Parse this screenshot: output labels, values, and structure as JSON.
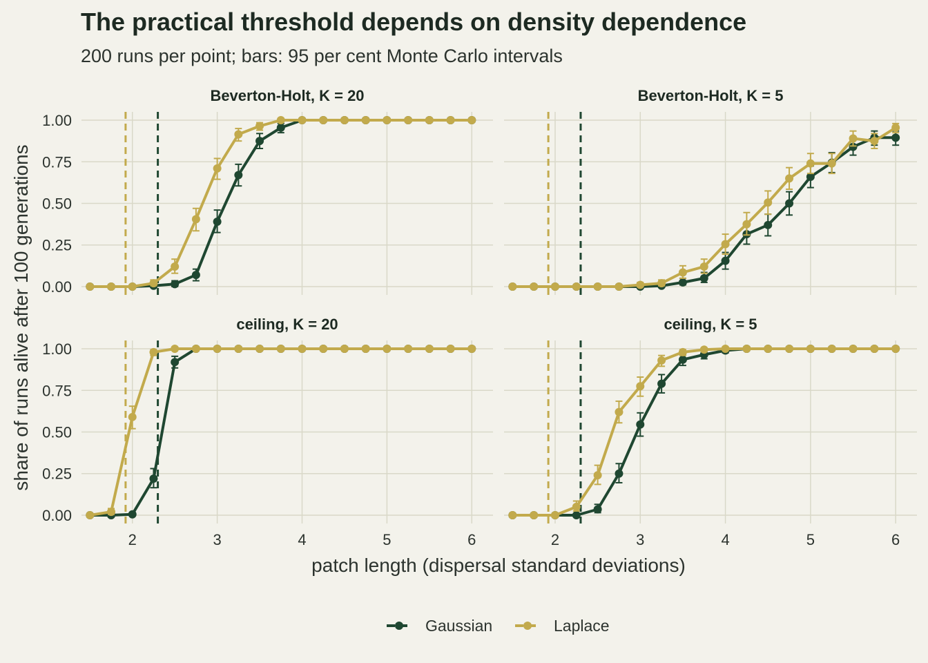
{
  "title": "The practical threshold depends on density dependence",
  "subtitle": "200 runs per point; bars: 95 per cent Monte Carlo intervals",
  "colors": {
    "background": "#f3f2eb",
    "grid": "#d9d8c8",
    "gaussian": "#1f4731",
    "laplace": "#c2aa4c"
  },
  "chart_data": {
    "type": "line",
    "xlabel": "patch length (dispersal standard deviations)",
    "ylabel": "share of runs alive after 100 generations",
    "xlim": [
      1.4,
      6.25
    ],
    "ylim": [
      -0.05,
      1.05
    ],
    "x_ticks": [
      2,
      3,
      4,
      5,
      6
    ],
    "x_tick_labels": [
      "2",
      "3",
      "4",
      "5",
      "6"
    ],
    "y_ticks": [
      0,
      0.25,
      0.5,
      0.75,
      1
    ],
    "y_tick_labels": [
      "0.00",
      "0.25",
      "0.50",
      "0.75",
      "1.00"
    ],
    "grid": true,
    "legend": {
      "position": "bottom",
      "entries": [
        "Gaussian",
        "Laplace"
      ]
    },
    "threshold_lines": {
      "Gaussian": 2.3,
      "Laplace": 1.92
    },
    "x": [
      1.5,
      1.75,
      2.0,
      2.25,
      2.5,
      2.75,
      3.0,
      3.25,
      3.5,
      3.75,
      4.0,
      4.25,
      4.5,
      4.75,
      5.0,
      5.25,
      5.5,
      5.75,
      6.0
    ],
    "panels": [
      {
        "label": "Beverton-Holt, K = 20",
        "series": [
          {
            "name": "Gaussian",
            "values": [
              0,
              0,
              0,
              0.005,
              0.015,
              0.07,
              0.39,
              0.67,
              0.875,
              0.955,
              1,
              1,
              1,
              1,
              1,
              1,
              1,
              1,
              1
            ],
            "lower": [
              0,
              0,
              0,
              0,
              0,
              0.035,
              0.325,
              0.605,
              0.83,
              0.925,
              1,
              1,
              1,
              1,
              1,
              1,
              1,
              1,
              1
            ],
            "upper": [
              0,
              0,
              0,
              0.015,
              0.035,
              0.105,
              0.46,
              0.735,
              0.92,
              0.98,
              1,
              1,
              1,
              1,
              1,
              1,
              1,
              1,
              1
            ]
          },
          {
            "name": "Laplace",
            "values": [
              0,
              0,
              0,
              0.02,
              0.12,
              0.405,
              0.71,
              0.915,
              0.965,
              1,
              1,
              1,
              1,
              1,
              1,
              1,
              1,
              1,
              1
            ],
            "lower": [
              0,
              0,
              0,
              0.005,
              0.08,
              0.335,
              0.645,
              0.875,
              0.94,
              1,
              1,
              1,
              1,
              1,
              1,
              1,
              1,
              1,
              1
            ],
            "upper": [
              0,
              0,
              0,
              0.04,
              0.165,
              0.47,
              0.77,
              0.95,
              0.985,
              1,
              1,
              1,
              1,
              1,
              1,
              1,
              1,
              1,
              1
            ]
          }
        ]
      },
      {
        "label": "Beverton-Holt, K = 5",
        "series": [
          {
            "name": "Gaussian",
            "values": [
              0,
              0,
              0,
              0,
              0,
              0,
              0,
              0.005,
              0.025,
              0.05,
              0.155,
              0.315,
              0.37,
              0.5,
              0.66,
              0.745,
              0.84,
              0.895,
              0.895
            ],
            "lower": [
              0,
              0,
              0,
              0,
              0,
              0,
              0,
              0,
              0.01,
              0.025,
              0.105,
              0.255,
              0.305,
              0.43,
              0.595,
              0.685,
              0.79,
              0.85,
              0.85
            ],
            "upper": [
              0,
              0,
              0,
              0,
              0,
              0,
              0,
              0.015,
              0.05,
              0.085,
              0.205,
              0.38,
              0.435,
              0.57,
              0.725,
              0.805,
              0.89,
              0.935,
              0.935
            ]
          },
          {
            "name": "Laplace",
            "values": [
              0,
              0,
              0,
              0,
              0,
              0,
              0.01,
              0.02,
              0.085,
              0.12,
              0.255,
              0.375,
              0.505,
              0.65,
              0.74,
              0.74,
              0.89,
              0.875,
              0.955
            ],
            "lower": [
              0,
              0,
              0,
              0,
              0,
              0,
              0,
              0.005,
              0.05,
              0.08,
              0.195,
              0.31,
              0.435,
              0.585,
              0.68,
              0.68,
              0.845,
              0.83,
              0.925
            ],
            "upper": [
              0,
              0,
              0,
              0,
              0,
              0,
              0.025,
              0.04,
              0.125,
              0.165,
              0.315,
              0.445,
              0.575,
              0.715,
              0.8,
              0.8,
              0.935,
              0.92,
              0.98
            ]
          }
        ]
      },
      {
        "label": "ceiling, K = 20",
        "series": [
          {
            "name": "Gaussian",
            "values": [
              0,
              0,
              0.005,
              0.22,
              0.92,
              1,
              1,
              1,
              1,
              1,
              1,
              1,
              1,
              1,
              1,
              1,
              1,
              1,
              1
            ],
            "lower": [
              0,
              0,
              0,
              0.165,
              0.885,
              1,
              1,
              1,
              1,
              1,
              1,
              1,
              1,
              1,
              1,
              1,
              1,
              1,
              1
            ],
            "upper": [
              0,
              0,
              0.015,
              0.28,
              0.955,
              1,
              1,
              1,
              1,
              1,
              1,
              1,
              1,
              1,
              1,
              1,
              1,
              1,
              1
            ]
          },
          {
            "name": "Laplace",
            "values": [
              0,
              0.02,
              0.59,
              0.98,
              1,
              1,
              1,
              1,
              1,
              1,
              1,
              1,
              1,
              1,
              1,
              1,
              1,
              1,
              1
            ],
            "lower": [
              0,
              0.005,
              0.52,
              0.96,
              1,
              1,
              1,
              1,
              1,
              1,
              1,
              1,
              1,
              1,
              1,
              1,
              1,
              1,
              1
            ],
            "upper": [
              0,
              0.04,
              0.655,
              0.995,
              1,
              1,
              1,
              1,
              1,
              1,
              1,
              1,
              1,
              1,
              1,
              1,
              1,
              1,
              1
            ]
          }
        ]
      },
      {
        "label": "ceiling, K = 5",
        "series": [
          {
            "name": "Gaussian",
            "values": [
              0,
              0,
              0,
              0,
              0.035,
              0.25,
              0.545,
              0.79,
              0.935,
              0.965,
              0.99,
              1,
              1,
              1,
              1,
              1,
              1,
              1,
              1
            ],
            "lower": [
              0,
              0,
              0,
              0,
              0.015,
              0.195,
              0.475,
              0.735,
              0.9,
              0.94,
              0.975,
              1,
              1,
              1,
              1,
              1,
              1,
              1,
              1
            ],
            "upper": [
              0,
              0,
              0,
              0,
              0.065,
              0.31,
              0.615,
              0.845,
              0.965,
              0.985,
              1,
              1,
              1,
              1,
              1,
              1,
              1,
              1,
              1
            ]
          },
          {
            "name": "Laplace",
            "values": [
              0,
              0,
              0,
              0.05,
              0.24,
              0.62,
              0.775,
              0.93,
              0.98,
              0.995,
              1,
              1,
              1,
              1,
              1,
              1,
              1,
              1,
              1
            ],
            "lower": [
              0,
              0,
              0,
              0.025,
              0.185,
              0.555,
              0.715,
              0.895,
              0.96,
              0.985,
              1,
              1,
              1,
              1,
              1,
              1,
              1,
              1,
              1
            ],
            "upper": [
              0,
              0,
              0,
              0.085,
              0.3,
              0.685,
              0.83,
              0.96,
              0.995,
              1,
              1,
              1,
              1,
              1,
              1,
              1,
              1,
              1,
              1
            ]
          }
        ]
      }
    ]
  }
}
